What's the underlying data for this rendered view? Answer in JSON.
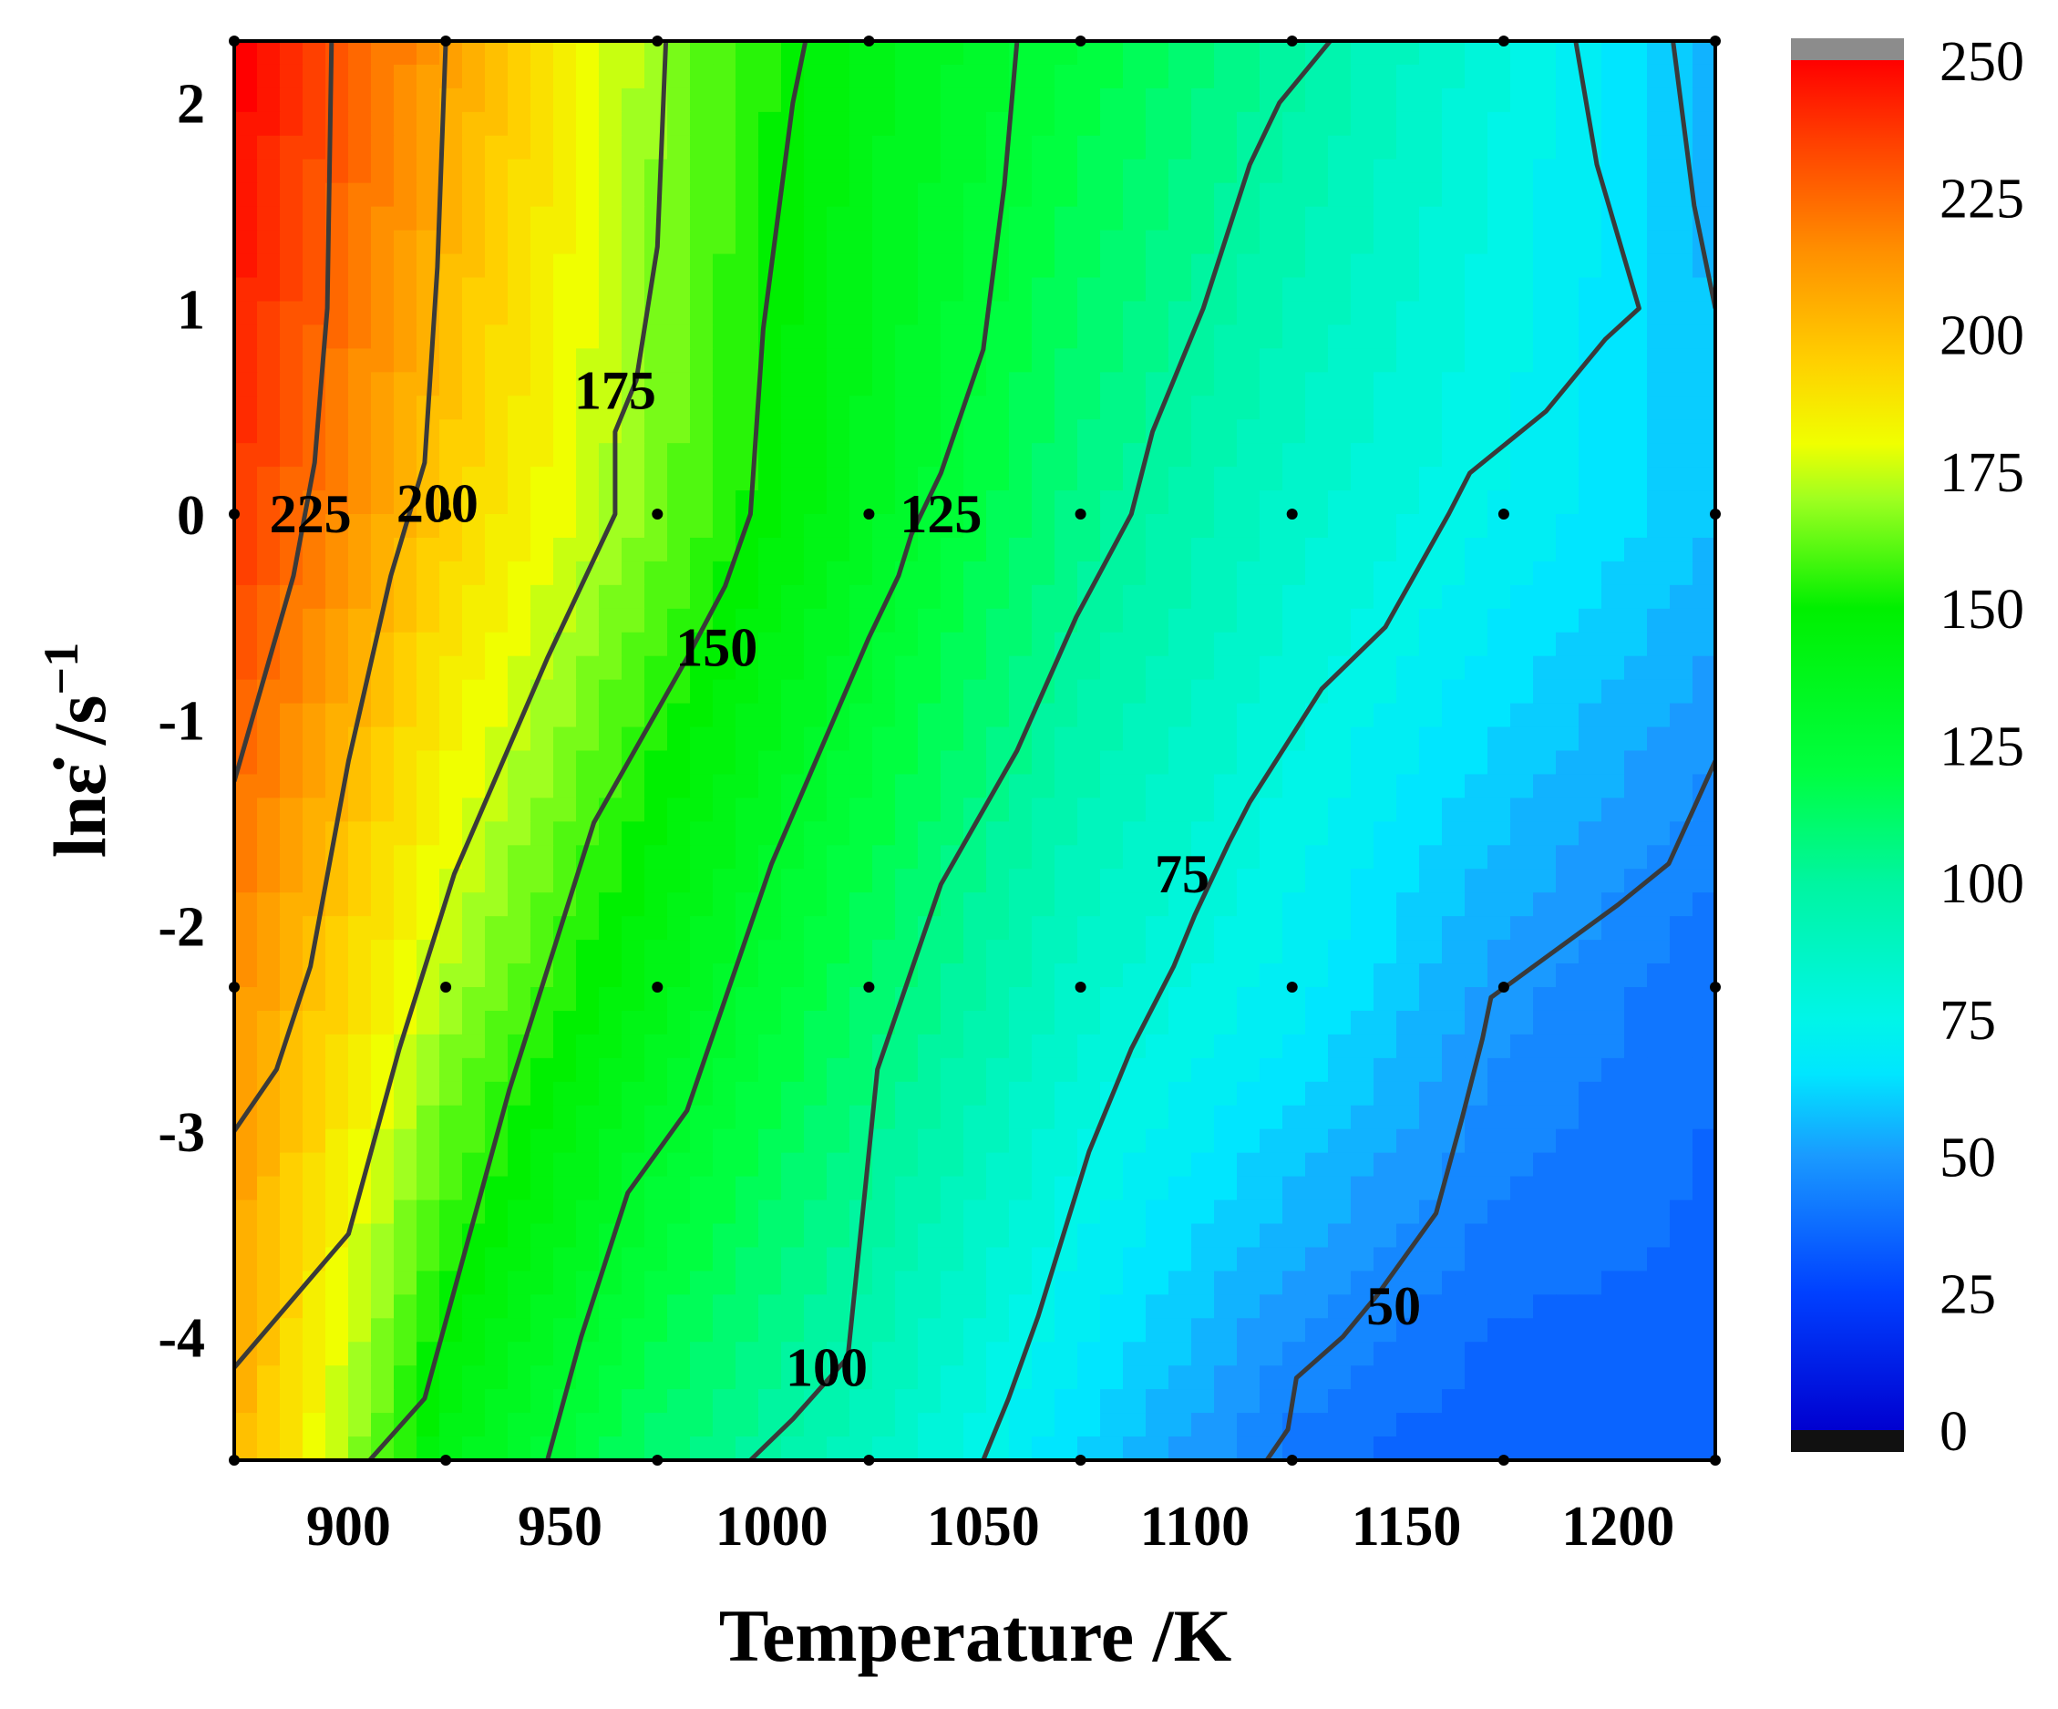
{
  "chart_data": {
    "type": "contour",
    "xlabel": "Temperature /K",
    "ylabel": {
      "main": "lnε̇ /s",
      "sup": "−1"
    },
    "xlim": [
      873,
      1223
    ],
    "ylim": [
      -4.6,
      2.3
    ],
    "x_ticks": [
      "900",
      "950",
      "1000",
      "1050",
      "1100",
      "1150",
      "1200"
    ],
    "x_tick_values": [
      900,
      950,
      1000,
      1050,
      1100,
      1150,
      1200
    ],
    "y_ticks": [
      "2",
      "1",
      "0",
      "-1",
      "-2",
      "-3",
      "-4"
    ],
    "y_tick_values": [
      2,
      1,
      0,
      -1,
      -2,
      -3,
      -4
    ],
    "z_description": "filled contour of value over temperature and log strain rate",
    "grid_points_x": [
      873,
      923,
      973,
      1023,
      1073,
      1123,
      1173,
      1223
    ],
    "grid_points_y": [
      -4.6,
      -2.3,
      0,
      2.3
    ],
    "z": [
      [
        205,
        140,
        110,
        88,
        62,
        40,
        32,
        35
      ],
      [
        215,
        172,
        140,
        112,
        85,
        70,
        50,
        38
      ],
      [
        238,
        195,
        165,
        135,
        105,
        85,
        72,
        58
      ],
      [
        252,
        210,
        168,
        140,
        122,
        100,
        78,
        55
      ]
    ],
    "contours": [
      {
        "level": 225,
        "label": "225",
        "label_at": [
          891,
          0.0
        ],
        "points": [
          [
            873,
            -1.3
          ],
          [
            880,
            -0.8
          ],
          [
            887,
            -0.3
          ],
          [
            892,
            0.25
          ],
          [
            895,
            1.0
          ],
          [
            896,
            2.3
          ]
        ]
      },
      {
        "level": 200,
        "label": "200",
        "label_at": [
          921,
          0.05
        ],
        "points": [
          [
            873,
            -3.0
          ],
          [
            883,
            -2.7
          ],
          [
            891,
            -2.2
          ],
          [
            900,
            -1.2
          ],
          [
            910,
            -0.3
          ],
          [
            918,
            0.25
          ],
          [
            921,
            1.2
          ],
          [
            923,
            2.3
          ]
        ]
      },
      {
        "level": 175,
        "label": "175",
        "label_at": [
          963,
          0.6
        ],
        "points": [
          [
            873,
            -4.15
          ],
          [
            900,
            -3.5
          ],
          [
            912,
            -2.6
          ],
          [
            925,
            -1.75
          ],
          [
            947,
            -0.7
          ],
          [
            963,
            0.0
          ],
          [
            963,
            0.4
          ],
          [
            968,
            0.65
          ],
          [
            973,
            1.3
          ],
          [
            975,
            2.3
          ]
        ]
      },
      {
        "level": 150,
        "label": "150",
        "label_at": [
          987,
          -0.65
        ],
        "points": [
          [
            905,
            -4.6
          ],
          [
            918,
            -4.3
          ],
          [
            938,
            -2.8
          ],
          [
            958,
            -1.5
          ],
          [
            980,
            -0.7
          ],
          [
            989,
            -0.35
          ],
          [
            995,
            0.0
          ],
          [
            998,
            0.9
          ],
          [
            1005,
            2.0
          ],
          [
            1008,
            2.3
          ]
        ]
      },
      {
        "level": 125,
        "label": "125",
        "label_at": [
          1040,
          0.0
        ],
        "points": [
          [
            947,
            -4.6
          ],
          [
            955,
            -4.0
          ],
          [
            966,
            -3.3
          ],
          [
            980,
            -2.9
          ],
          [
            1000,
            -1.7
          ],
          [
            1023,
            -0.6
          ],
          [
            1030,
            -0.3
          ],
          [
            1033,
            -0.1
          ],
          [
            1040,
            0.2
          ],
          [
            1050,
            0.8
          ],
          [
            1055,
            1.6
          ],
          [
            1058,
            2.3
          ]
        ]
      },
      {
        "level": 100,
        "label": "100",
        "label_at": [
          1013,
          -4.15
        ],
        "points": [
          [
            995,
            -4.6
          ],
          [
            1005,
            -4.4
          ],
          [
            1018,
            -4.1
          ],
          [
            1022,
            -3.3
          ],
          [
            1025,
            -2.7
          ],
          [
            1040,
            -1.8
          ],
          [
            1058,
            -1.15
          ],
          [
            1072,
            -0.5
          ],
          [
            1085,
            0.0
          ],
          [
            1090,
            0.4
          ],
          [
            1102,
            1.0
          ],
          [
            1113,
            1.7
          ],
          [
            1120,
            2.0
          ],
          [
            1132,
            2.3
          ]
        ]
      },
      {
        "level": 75,
        "label": "75",
        "label_at": [
          1097,
          -1.75
        ],
        "points": [
          [
            1050,
            -4.6
          ],
          [
            1056,
            -4.3
          ],
          [
            1063,
            -3.9
          ],
          [
            1075,
            -3.1
          ],
          [
            1085,
            -2.6
          ],
          [
            1095,
            -2.2
          ],
          [
            1100,
            -1.95
          ],
          [
            1108,
            -1.6
          ],
          [
            1113,
            -1.4
          ],
          [
            1130,
            -0.85
          ],
          [
            1145,
            -0.55
          ],
          [
            1160,
            0.0
          ],
          [
            1165,
            0.2
          ],
          [
            1183,
            0.5
          ],
          [
            1197,
            0.85
          ],
          [
            1205,
            1.0
          ],
          [
            1195,
            1.7
          ],
          [
            1190,
            2.3
          ]
        ]
      },
      {
        "level": 50,
        "label": "50",
        "label_at": [
          1147,
          -3.85
        ],
        "points": [
          [
            1117,
            -4.6
          ],
          [
            1122,
            -4.45
          ],
          [
            1124,
            -4.2
          ],
          [
            1135,
            -4.0
          ],
          [
            1143,
            -3.8
          ],
          [
            1157,
            -3.4
          ],
          [
            1163,
            -2.95
          ],
          [
            1168,
            -2.55
          ],
          [
            1170,
            -2.35
          ],
          [
            1180,
            -2.2
          ],
          [
            1200,
            -1.9
          ],
          [
            1212,
            -1.7
          ],
          [
            1223,
            -1.2
          ]
        ]
      },
      {
        "level": 50,
        "label": "",
        "label_at": null,
        "points": [
          [
            1213,
            2.3
          ],
          [
            1218,
            1.5
          ],
          [
            1223,
            1.0
          ]
        ]
      }
    ],
    "colorbar": {
      "ticks": [
        "250",
        "225",
        "200",
        "175",
        "150",
        "125",
        "100",
        "75",
        "50",
        "25",
        "0"
      ],
      "tick_values": [
        250,
        225,
        200,
        175,
        150,
        125,
        100,
        75,
        50,
        25,
        0
      ],
      "range": [
        0,
        250
      ]
    }
  }
}
